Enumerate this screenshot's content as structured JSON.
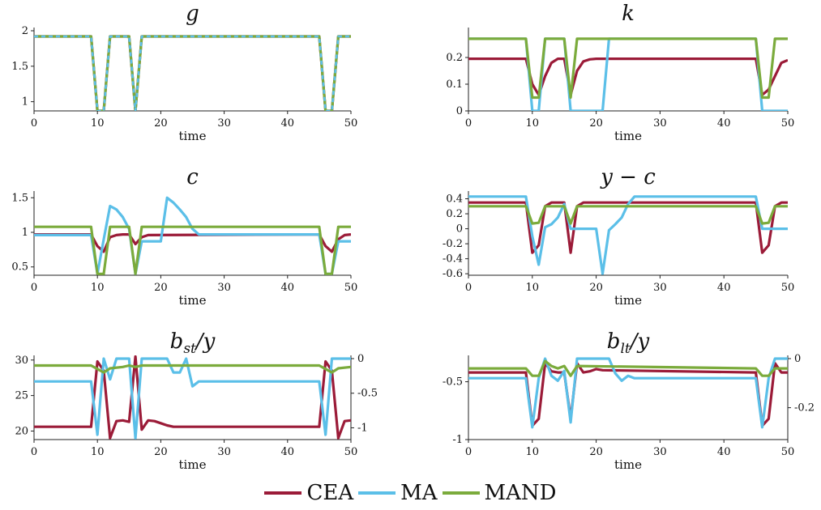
{
  "legend": [
    {
      "name": "CEA",
      "color": "#9b1b38"
    },
    {
      "name": "MA",
      "color": "#5bbfe8"
    },
    {
      "name": "MAND",
      "color": "#7bab3c"
    }
  ],
  "chart_data": [
    {
      "id": "g",
      "type": "line",
      "title": "g",
      "xlabel": "time",
      "xlim": [
        0,
        50
      ],
      "xticks": [
        0,
        10,
        20,
        30,
        40,
        50
      ],
      "ylim": [
        0.87,
        2.0
      ],
      "yticks": [
        1,
        1.5,
        2
      ],
      "yticklabels": [
        "1",
        "1.5",
        "2"
      ],
      "series": [
        {
          "name": "CEA",
          "x": [
            0,
            9,
            10,
            11,
            12,
            14,
            15,
            16,
            17,
            45,
            46,
            47,
            48,
            50
          ],
          "y": [
            1.92,
            1.92,
            0.87,
            0.87,
            1.92,
            1.92,
            1.92,
            0.87,
            1.92,
            1.92,
            0.87,
            0.87,
            1.92,
            1.92
          ],
          "dashed": false
        },
        {
          "name": "MAND",
          "x": [
            0,
            9,
            10,
            11,
            12,
            14,
            15,
            16,
            17,
            45,
            46,
            47,
            48,
            50
          ],
          "y": [
            1.92,
            1.92,
            0.87,
            0.87,
            1.92,
            1.92,
            1.92,
            0.87,
            1.92,
            1.92,
            0.87,
            0.87,
            1.92,
            1.92
          ],
          "dashed": false
        },
        {
          "name": "MA",
          "x": [
            0,
            9,
            10,
            11,
            12,
            14,
            15,
            16,
            17,
            45,
            46,
            47,
            48,
            50
          ],
          "y": [
            1.92,
            1.92,
            0.87,
            0.87,
            1.92,
            1.92,
            1.92,
            0.87,
            1.92,
            1.92,
            0.87,
            0.87,
            1.92,
            1.92
          ],
          "dashed": true
        }
      ]
    },
    {
      "id": "k",
      "type": "line",
      "title": "k",
      "xlabel": "time",
      "xlim": [
        0,
        50
      ],
      "xticks": [
        0,
        10,
        20,
        30,
        40,
        50
      ],
      "ylim": [
        0,
        0.3
      ],
      "yticks": [
        0,
        0.1,
        0.2
      ],
      "yticklabels": [
        "0",
        "0.1",
        "0.2"
      ],
      "series": [
        {
          "name": "CEA",
          "x": [
            0,
            9,
            10,
            11,
            12,
            13,
            14,
            15,
            16,
            17,
            18,
            19,
            20,
            21,
            45,
            46,
            47,
            48,
            49,
            50
          ],
          "y": [
            0.195,
            0.195,
            0.1,
            0.06,
            0.13,
            0.18,
            0.195,
            0.195,
            0.06,
            0.15,
            0.185,
            0.193,
            0.195,
            0.195,
            0.195,
            0.06,
            0.08,
            0.13,
            0.18,
            0.19
          ]
        },
        {
          "name": "MA",
          "x": [
            0,
            9,
            10,
            11,
            12,
            14,
            15,
            16,
            17,
            20,
            21,
            22,
            45,
            46,
            50
          ],
          "y": [
            0.27,
            0.27,
            0,
            0,
            0.27,
            0.27,
            0.27,
            0,
            0,
            0,
            0,
            0.27,
            0.27,
            0,
            0
          ]
        },
        {
          "name": "MAND",
          "x": [
            0,
            9,
            10,
            11,
            12,
            14,
            15,
            16,
            17,
            45,
            46,
            47,
            48,
            50
          ],
          "y": [
            0.27,
            0.27,
            0.05,
            0.05,
            0.27,
            0.27,
            0.27,
            0.05,
            0.27,
            0.27,
            0.05,
            0.05,
            0.27,
            0.27
          ]
        }
      ]
    },
    {
      "id": "c",
      "type": "line",
      "title": "c",
      "xlabel": "time",
      "xlim": [
        0,
        50
      ],
      "xticks": [
        0,
        10,
        20,
        30,
        40,
        50
      ],
      "ylim": [
        0.38,
        1.55
      ],
      "yticks": [
        0.5,
        1,
        1.5
      ],
      "yticklabels": [
        "0.5",
        "1",
        "1.5"
      ],
      "series": [
        {
          "name": "CEA",
          "x": [
            0,
            9,
            10,
            11,
            12,
            13,
            14,
            15,
            16,
            17,
            18,
            45,
            46,
            47,
            48,
            49,
            50
          ],
          "y": [
            0.97,
            0.97,
            0.8,
            0.72,
            0.93,
            0.96,
            0.97,
            0.97,
            0.83,
            0.93,
            0.96,
            0.97,
            0.8,
            0.72,
            0.9,
            0.96,
            0.97
          ]
        },
        {
          "name": "MA",
          "x": [
            0,
            9,
            10,
            11,
            12,
            13,
            14,
            15,
            16,
            17,
            20,
            21,
            22,
            23,
            24,
            25,
            26,
            45,
            46,
            47,
            48,
            50
          ],
          "y": [
            0.96,
            0.96,
            0.4,
            0.9,
            1.38,
            1.33,
            1.22,
            1.05,
            0.4,
            0.87,
            0.87,
            1.5,
            1.43,
            1.33,
            1.22,
            1.05,
            0.97,
            0.97,
            0.4,
            0.4,
            0.87,
            0.87
          ]
        },
        {
          "name": "MAND",
          "x": [
            0,
            9,
            10,
            11,
            12,
            14,
            15,
            16,
            17,
            45,
            46,
            47,
            48,
            50
          ],
          "y": [
            1.08,
            1.08,
            0.4,
            0.4,
            1.08,
            1.08,
            1.08,
            0.4,
            1.08,
            1.08,
            0.4,
            0.4,
            1.08,
            1.08
          ]
        }
      ]
    },
    {
      "id": "y_minus_c",
      "type": "line",
      "title": "y − c",
      "xlabel": "time",
      "xlim": [
        0,
        50
      ],
      "xticks": [
        0,
        10,
        20,
        30,
        40,
        50
      ],
      "ylim": [
        -0.62,
        0.46
      ],
      "yticks": [
        -0.6,
        -0.4,
        -0.2,
        0,
        0.2,
        0.4
      ],
      "yticklabels": [
        "-0.6",
        "-0.4",
        "-0.2",
        "0",
        "0.2",
        "0.4"
      ],
      "series": [
        {
          "name": "CEA",
          "x": [
            0,
            9,
            10,
            11,
            12,
            13,
            14,
            15,
            16,
            17,
            18,
            45,
            46,
            47,
            48,
            49,
            50
          ],
          "y": [
            0.35,
            0.35,
            -0.32,
            -0.22,
            0.3,
            0.35,
            0.35,
            0.35,
            -0.32,
            0.3,
            0.35,
            0.35,
            -0.32,
            -0.22,
            0.3,
            0.35,
            0.35
          ]
        },
        {
          "name": "MA",
          "x": [
            0,
            9,
            10,
            11,
            12,
            13,
            14,
            15,
            16,
            17,
            20,
            21,
            22,
            23,
            24,
            25,
            26,
            45,
            46,
            47,
            48,
            50
          ],
          "y": [
            0.43,
            0.43,
            -0.1,
            -0.48,
            0.02,
            0.06,
            0.15,
            0.33,
            0,
            0,
            0,
            -0.6,
            -0.02,
            0.06,
            0.15,
            0.33,
            0.43,
            0.43,
            0,
            0,
            0,
            0
          ]
        },
        {
          "name": "MAND",
          "x": [
            0,
            9,
            10,
            11,
            12,
            14,
            15,
            16,
            17,
            45,
            46,
            47,
            48,
            50
          ],
          "y": [
            0.3,
            0.3,
            0.07,
            0.08,
            0.3,
            0.3,
            0.3,
            0.07,
            0.3,
            0.3,
            0.07,
            0.08,
            0.3,
            0.3
          ]
        }
      ]
    },
    {
      "id": "bst_y",
      "type": "line",
      "title": "b_st / y",
      "xlabel": "time",
      "xlim": [
        0,
        50
      ],
      "xticks": [
        0,
        10,
        20,
        30,
        40,
        50
      ],
      "ylim": [
        18.8,
        30.2
      ],
      "yticks": [
        20,
        25,
        30
      ],
      "yticklabels": [
        "20",
        "25",
        "30"
      ],
      "y2lim": [
        -1.17,
        0
      ],
      "y2ticks": [
        -1,
        -0.5,
        0
      ],
      "y2ticklabels": [
        "-1",
        "-0.5",
        "0"
      ],
      "series": [
        {
          "name": "CEA",
          "axis": "left",
          "x": [
            0,
            9,
            10,
            11,
            12,
            13,
            14,
            15,
            16,
            17,
            18,
            19,
            20,
            21,
            22,
            45,
            46,
            47,
            48,
            49,
            50
          ],
          "y": [
            20.6,
            20.6,
            29.8,
            28.5,
            19,
            21.4,
            21.5,
            21.3,
            30.5,
            20.2,
            21.5,
            21.4,
            21.1,
            20.8,
            20.6,
            20.6,
            29.8,
            28.5,
            19,
            21.4,
            21.5
          ]
        },
        {
          "name": "MA",
          "axis": "right",
          "x": [
            0,
            9,
            10,
            11,
            12,
            13,
            14,
            15,
            16,
            17,
            21,
            22,
            23,
            24,
            25,
            26,
            45,
            46,
            47,
            48,
            50
          ],
          "y": [
            -0.33,
            -0.33,
            -1.1,
            0,
            -0.3,
            0,
            0,
            0,
            -1.15,
            0,
            0,
            -0.2,
            -0.2,
            0,
            -0.4,
            -0.33,
            -0.33,
            -1.1,
            0,
            0,
            0
          ]
        },
        {
          "name": "MAND",
          "axis": "right",
          "x": [
            0,
            9,
            10,
            11,
            12,
            14,
            15,
            16,
            17,
            45,
            46,
            47,
            48,
            50
          ],
          "y": [
            -0.1,
            -0.1,
            -0.15,
            -0.2,
            -0.14,
            -0.12,
            -0.1,
            -0.12,
            -0.1,
            -0.1,
            -0.15,
            -0.2,
            -0.14,
            -0.12
          ]
        }
      ]
    },
    {
      "id": "blt_y",
      "type": "line",
      "title": "b_lt / y",
      "xlabel": "time",
      "xlim": [
        0,
        50
      ],
      "xticks": [
        0,
        10,
        20,
        30,
        40,
        50
      ],
      "ylim": [
        -1,
        -0.3
      ],
      "yticks": [
        -1,
        -0.5
      ],
      "yticklabels": [
        "-1",
        "-0.5"
      ],
      "y2lim": [
        -0.33,
        0
      ],
      "y2ticks": [
        -0.2,
        0
      ],
      "y2ticklabels": [
        "-0.2",
        "0"
      ],
      "series": [
        {
          "name": "CEA",
          "axis": "left",
          "x": [
            0,
            9,
            10,
            11,
            12,
            13,
            14,
            15,
            16,
            17,
            18,
            19,
            20,
            21,
            45,
            46,
            47,
            48,
            49,
            50
          ],
          "y": [
            -0.42,
            -0.42,
            -0.88,
            -0.82,
            -0.34,
            -0.41,
            -0.42,
            -0.42,
            -0.82,
            -0.34,
            -0.42,
            -0.41,
            -0.39,
            -0.4,
            -0.42,
            -0.88,
            -0.82,
            -0.34,
            -0.42,
            -0.42
          ]
        },
        {
          "name": "MA",
          "axis": "right",
          "x": [
            0,
            9,
            10,
            11,
            12,
            13,
            14,
            15,
            16,
            17,
            21,
            22,
            23,
            24,
            25,
            26,
            45,
            46,
            47,
            48,
            50
          ],
          "y": [
            -0.08,
            -0.08,
            -0.28,
            -0.08,
            0,
            -0.07,
            -0.09,
            -0.05,
            -0.26,
            0,
            0,
            0,
            -0.06,
            -0.09,
            -0.07,
            -0.08,
            -0.08,
            -0.28,
            -0.08,
            0,
            0
          ]
        },
        {
          "name": "MAND",
          "axis": "right",
          "x": [
            0,
            9,
            10,
            11,
            12,
            13,
            14,
            15,
            16,
            17,
            45,
            46,
            47,
            48,
            50
          ],
          "y": [
            -0.04,
            -0.04,
            -0.07,
            -0.07,
            -0.01,
            -0.03,
            -0.04,
            -0.03,
            -0.07,
            -0.03,
            -0.04,
            -0.07,
            -0.07,
            -0.04,
            -0.04
          ]
        }
      ]
    }
  ]
}
